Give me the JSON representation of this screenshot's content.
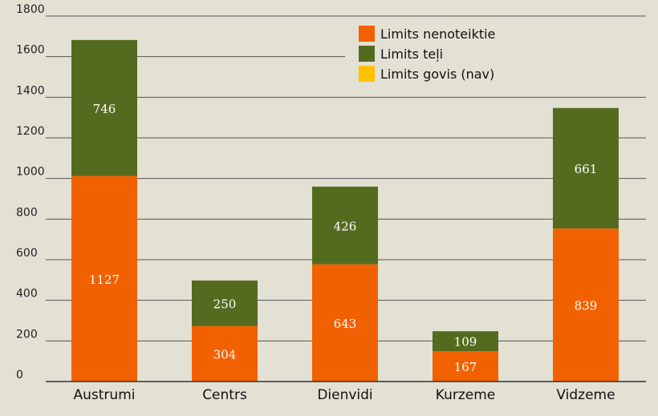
{
  "chart_data": {
    "type": "bar",
    "stacked": true,
    "categories": [
      "Austrumi",
      "Centrs",
      "Dienvidi",
      "Kurzeme",
      "Vidzeme"
    ],
    "series": [
      {
        "name": "Limits nenoteiktie",
        "color": "#f26100",
        "values": [
          1127,
          304,
          643,
          167,
          839
        ]
      },
      {
        "name": "Limits teļi",
        "color": "#546b1f",
        "values": [
          746,
          250,
          426,
          109,
          661
        ]
      },
      {
        "name": "Limits govis (nav)",
        "color": "#ffc200",
        "values": [
          0,
          0,
          0,
          0,
          0
        ]
      }
    ],
    "yticks": [
      0,
      200,
      400,
      600,
      800,
      1000,
      1200,
      1400,
      1600,
      1800
    ],
    "ylim": [
      0,
      1800
    ],
    "grid": true,
    "legend": "top-center",
    "background": "#e3e0d4"
  }
}
